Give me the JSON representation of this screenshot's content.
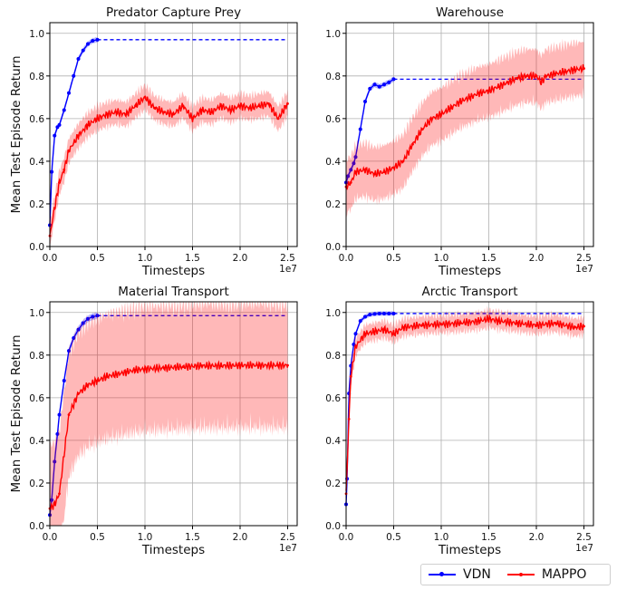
{
  "figure": {
    "legend": [
      {
        "name": "VDN",
        "color": "#0000ff"
      },
      {
        "name": "MAPPO",
        "color": "#ff0000"
      }
    ],
    "ylabel": "Mean Test Episode Return",
    "xlabel": "Timesteps",
    "x_multiplier": "1e7"
  },
  "chart_data": [
    {
      "type": "line",
      "title": "Predator Capture Prey",
      "xlabel": "Timesteps",
      "ylabel": "Mean Test Episode Return",
      "xlim": [
        0,
        2.6
      ],
      "ylim": [
        0,
        1.05
      ],
      "xticks": [
        "0.0",
        "0.5",
        "1.0",
        "1.5",
        "2.0",
        "2.5"
      ],
      "yticks": [
        "0.0",
        "0.2",
        "0.4",
        "0.6",
        "0.8",
        "1.0"
      ],
      "grid": true,
      "series": [
        {
          "name": "VDN",
          "color": "#0000ff",
          "x": [
            0,
            0.02,
            0.05,
            0.08,
            0.1,
            0.15,
            0.2,
            0.25,
            0.3,
            0.35,
            0.4,
            0.45,
            0.5
          ],
          "y": [
            0.1,
            0.35,
            0.52,
            0.56,
            0.57,
            0.64,
            0.72,
            0.8,
            0.88,
            0.92,
            0.95,
            0.965,
            0.97
          ],
          "band": 0.012,
          "baseline": {
            "from": 0.5,
            "to": 2.5,
            "y": 0.97
          }
        },
        {
          "name": "MAPPO",
          "color": "#ff0000",
          "x": [
            0,
            0.05,
            0.1,
            0.15,
            0.2,
            0.3,
            0.4,
            0.5,
            0.6,
            0.7,
            0.8,
            0.9,
            1.0,
            1.1,
            1.2,
            1.3,
            1.4,
            1.5,
            1.6,
            1.7,
            1.8,
            1.9,
            2.0,
            2.1,
            2.2,
            2.3,
            2.4,
            2.5
          ],
          "y": [
            0.05,
            0.18,
            0.3,
            0.36,
            0.45,
            0.52,
            0.57,
            0.6,
            0.62,
            0.63,
            0.62,
            0.66,
            0.7,
            0.65,
            0.63,
            0.62,
            0.66,
            0.6,
            0.64,
            0.63,
            0.66,
            0.64,
            0.66,
            0.65,
            0.66,
            0.67,
            0.6,
            0.67
          ],
          "band": 0.055
        }
      ]
    },
    {
      "type": "line",
      "title": "Warehouse",
      "xlabel": "Timesteps",
      "ylabel": "",
      "xlim": [
        0,
        2.6
      ],
      "ylim": [
        0,
        1.05
      ],
      "xticks": [
        "0.0",
        "0.5",
        "1.0",
        "1.5",
        "2.0",
        "2.5"
      ],
      "yticks": [
        "0.0",
        "0.2",
        "0.4",
        "0.6",
        "0.8",
        "1.0"
      ],
      "grid": true,
      "series": [
        {
          "name": "VDN",
          "color": "#0000ff",
          "x": [
            0,
            0.02,
            0.05,
            0.08,
            0.1,
            0.15,
            0.2,
            0.25,
            0.3,
            0.35,
            0.4,
            0.45,
            0.5
          ],
          "y": [
            0.3,
            0.33,
            0.36,
            0.39,
            0.42,
            0.55,
            0.68,
            0.74,
            0.76,
            0.75,
            0.76,
            0.77,
            0.785
          ],
          "band": 0.012,
          "baseline": {
            "from": 0.5,
            "to": 2.5,
            "y": 0.785
          }
        },
        {
          "name": "MAPPO",
          "color": "#ff0000",
          "x": [
            0,
            0.05,
            0.1,
            0.2,
            0.3,
            0.4,
            0.5,
            0.6,
            0.7,
            0.8,
            0.9,
            1.0,
            1.1,
            1.2,
            1.3,
            1.4,
            1.5,
            1.6,
            1.7,
            1.8,
            1.9,
            2.0,
            2.05,
            2.1,
            2.2,
            2.3,
            2.4,
            2.5
          ],
          "y": [
            0.28,
            0.3,
            0.35,
            0.36,
            0.34,
            0.35,
            0.37,
            0.4,
            0.48,
            0.55,
            0.6,
            0.62,
            0.65,
            0.68,
            0.7,
            0.72,
            0.73,
            0.75,
            0.77,
            0.79,
            0.8,
            0.8,
            0.77,
            0.8,
            0.81,
            0.82,
            0.83,
            0.835
          ],
          "band": 0.12
        }
      ]
    },
    {
      "type": "line",
      "title": "Material Transport",
      "xlabel": "Timesteps",
      "ylabel": "Mean Test Episode Return",
      "xlim": [
        0,
        2.6
      ],
      "ylim": [
        0,
        1.05
      ],
      "xticks": [
        "0.0",
        "0.5",
        "1.0",
        "1.5",
        "2.0",
        "2.5"
      ],
      "yticks": [
        "0.0",
        "0.2",
        "0.4",
        "0.6",
        "0.8",
        "1.0"
      ],
      "grid": true,
      "series": [
        {
          "name": "VDN",
          "color": "#0000ff",
          "x": [
            0,
            0.02,
            0.05,
            0.08,
            0.1,
            0.15,
            0.2,
            0.25,
            0.3,
            0.35,
            0.4,
            0.45,
            0.5
          ],
          "y": [
            0.05,
            0.12,
            0.3,
            0.43,
            0.52,
            0.68,
            0.82,
            0.88,
            0.92,
            0.95,
            0.97,
            0.98,
            0.985
          ],
          "band": 0.015,
          "baseline": {
            "from": 0.5,
            "to": 2.5,
            "y": 0.985
          }
        },
        {
          "name": "MAPPO",
          "color": "#ff0000",
          "x": [
            0,
            0.05,
            0.1,
            0.2,
            0.3,
            0.4,
            0.5,
            0.6,
            0.7,
            0.8,
            0.9,
            1.0,
            1.2,
            1.4,
            1.6,
            1.8,
            2.0,
            2.2,
            2.4,
            2.5
          ],
          "y": [
            0.08,
            0.1,
            0.15,
            0.52,
            0.62,
            0.66,
            0.68,
            0.7,
            0.71,
            0.72,
            0.73,
            0.735,
            0.74,
            0.745,
            0.75,
            0.75,
            0.752,
            0.752,
            0.752,
            0.752
          ],
          "band": 0.28
        }
      ]
    },
    {
      "type": "line",
      "title": "Arctic Transport",
      "xlabel": "Timesteps",
      "ylabel": "",
      "xlim": [
        0,
        2.6
      ],
      "ylim": [
        0,
        1.05
      ],
      "xticks": [
        "0.0",
        "0.5",
        "1.0",
        "1.5",
        "2.0",
        "2.5"
      ],
      "yticks": [
        "0.0",
        "0.2",
        "0.4",
        "0.6",
        "0.8",
        "1.0"
      ],
      "grid": true,
      "series": [
        {
          "name": "VDN",
          "color": "#0000ff",
          "x": [
            0,
            0.01,
            0.03,
            0.05,
            0.08,
            0.1,
            0.15,
            0.2,
            0.25,
            0.3,
            0.35,
            0.4,
            0.45,
            0.5
          ],
          "y": [
            0.1,
            0.22,
            0.62,
            0.75,
            0.85,
            0.9,
            0.96,
            0.98,
            0.99,
            0.993,
            0.995,
            0.995,
            0.995,
            0.995
          ],
          "band": 0.01,
          "baseline": {
            "from": 0.5,
            "to": 2.5,
            "y": 0.995
          }
        },
        {
          "name": "MAPPO",
          "color": "#ff0000",
          "x": [
            0,
            0.03,
            0.05,
            0.1,
            0.2,
            0.3,
            0.4,
            0.5,
            0.6,
            0.8,
            1.0,
            1.2,
            1.4,
            1.5,
            1.6,
            1.8,
            2.0,
            2.2,
            2.4,
            2.5
          ],
          "y": [
            0.15,
            0.5,
            0.7,
            0.84,
            0.9,
            0.91,
            0.92,
            0.9,
            0.93,
            0.94,
            0.945,
            0.95,
            0.96,
            0.97,
            0.96,
            0.95,
            0.94,
            0.95,
            0.93,
            0.935
          ],
          "band": 0.04
        }
      ]
    }
  ]
}
